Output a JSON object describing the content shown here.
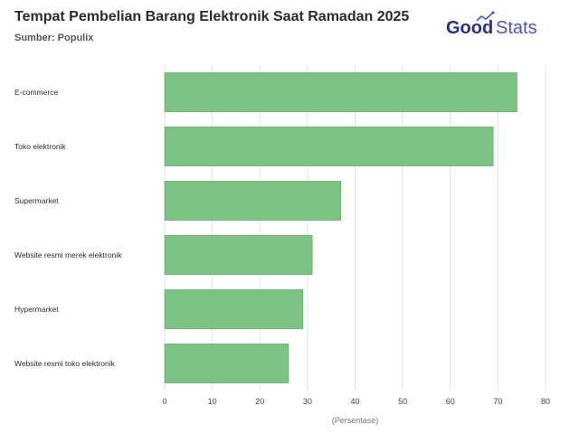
{
  "header": {
    "title": "Tempat Pembelian Barang Elektronik Saat Ramadan 2025",
    "source": "Sumber: Populix"
  },
  "brand": {
    "logo_part1": "Good",
    "logo_part2": "Stats",
    "color_primary": "#2a2f8c",
    "color_secondary": "#4b55c8"
  },
  "chart_data": {
    "type": "bar",
    "orientation": "horizontal",
    "categories": [
      "E-commerce",
      "Toko elektronik",
      "Supermarket",
      "Website resmi merek elektronik",
      "Hypermarket",
      "Website resmi toko elektronik"
    ],
    "values": [
      74,
      69,
      37,
      31,
      29,
      26
    ],
    "title": "Tempat Pembelian Barang Elektronik Saat Ramadan 2025",
    "xlabel": "(Persentase)",
    "ylabel": "",
    "xlim": [
      0,
      80
    ],
    "xticks": [
      0,
      10,
      20,
      30,
      40,
      50,
      60,
      70,
      80
    ],
    "grid": "vertical",
    "bar_color": "#7dc384",
    "bar_stroke": "#5aa862"
  }
}
